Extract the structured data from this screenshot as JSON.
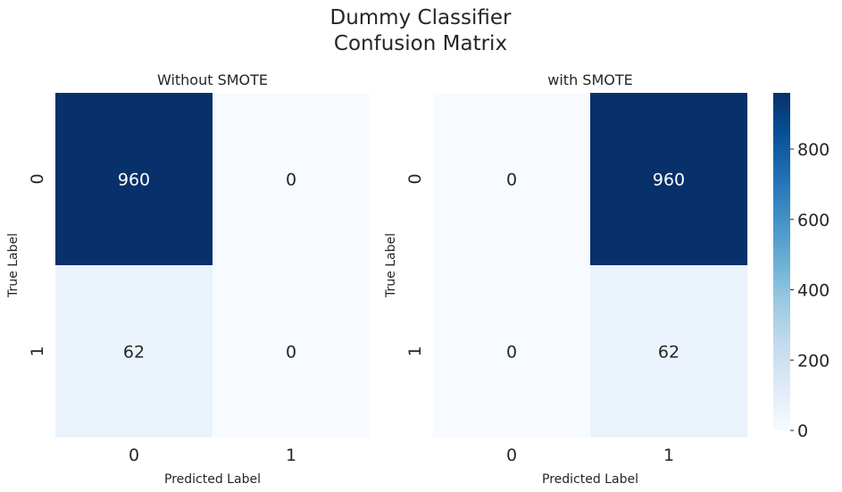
{
  "title": "Dummy Classifier",
  "subtitle": "Confusion Matrix",
  "chart_data": [
    {
      "type": "heatmap",
      "title": "Without SMOTE",
      "xlabel": "Predicted Label",
      "ylabel": "True Label",
      "x_categories": [
        "0",
        "1"
      ],
      "y_categories": [
        "0",
        "1"
      ],
      "values": [
        [
          960,
          0
        ],
        [
          62,
          0
        ]
      ],
      "colormap": "Blues"
    },
    {
      "type": "heatmap",
      "title": "with SMOTE",
      "xlabel": "Predicted Label",
      "ylabel": "True Label",
      "x_categories": [
        "0",
        "1"
      ],
      "y_categories": [
        "0",
        "1"
      ],
      "values": [
        [
          0,
          960
        ],
        [
          0,
          62
        ]
      ],
      "colormap": "Blues"
    }
  ],
  "colorbar": {
    "range": [
      0,
      960
    ],
    "ticks": [
      0,
      200,
      400,
      600,
      800
    ]
  }
}
